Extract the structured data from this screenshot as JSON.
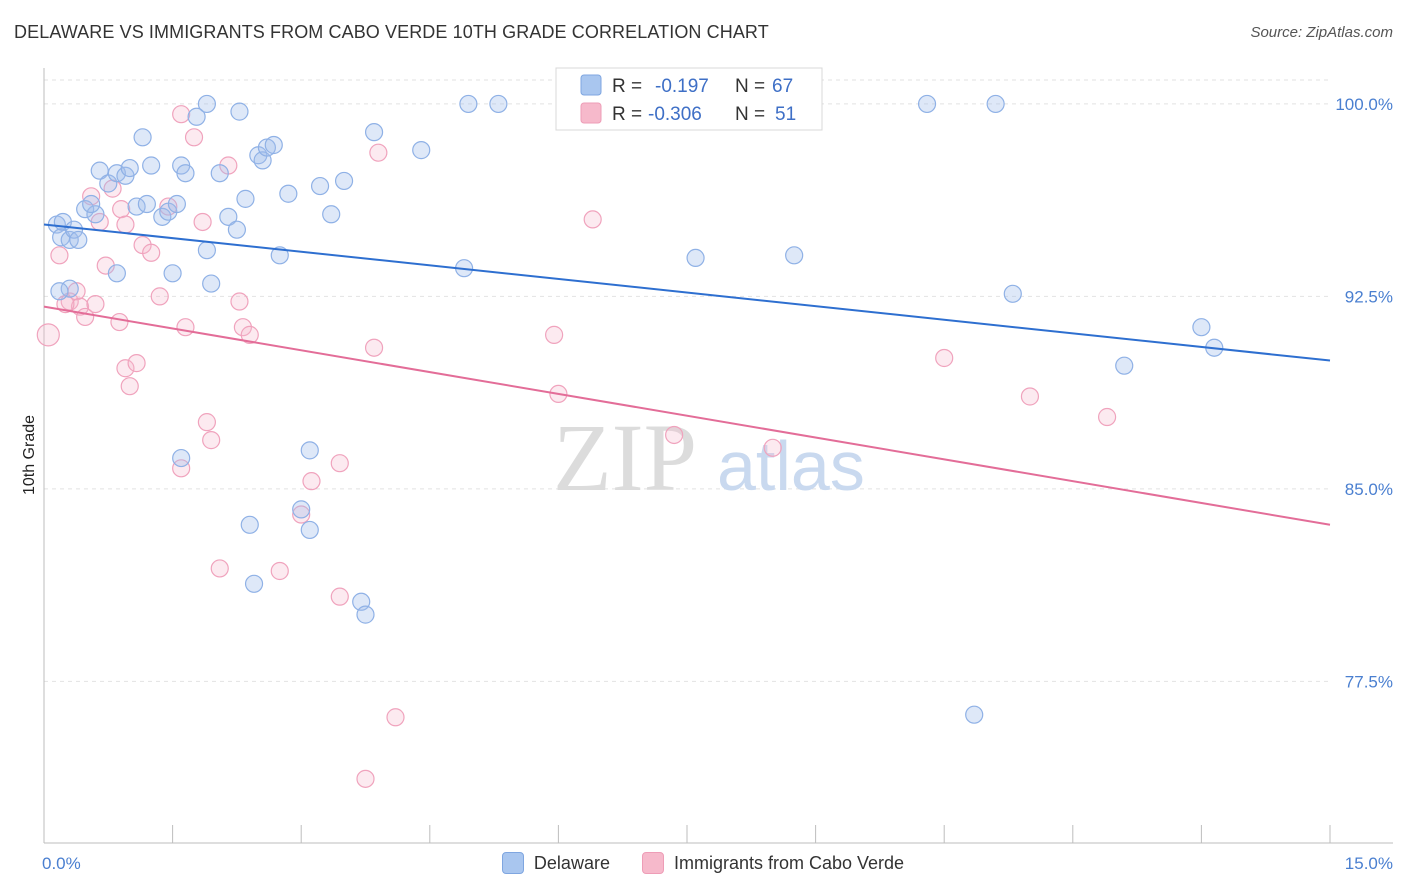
{
  "header": {
    "title": "DELAWARE VS IMMIGRANTS FROM CABO VERDE 10TH GRADE CORRELATION CHART",
    "source": "Source: ZipAtlas.com"
  },
  "watermark": {
    "zip": "ZIP",
    "atlas": "atlas"
  },
  "legend_top": [
    {
      "r_label": "R =",
      "r_value": "-0.197",
      "n_label": "N =",
      "n_value": "67",
      "color": "#a9c6ef"
    },
    {
      "r_label": "R =",
      "r_value": "-0.306",
      "n_label": "N =",
      "n_value": "51",
      "color": "#f6b9cb"
    }
  ],
  "legend_bottom": [
    {
      "label": "Delaware",
      "color": "#a9c6ef"
    },
    {
      "label": "Immigrants from Cabo Verde",
      "color": "#f6b9cb"
    }
  ],
  "colors": {
    "blue_fill": "rgba(160,190,235,0.35)",
    "blue_stroke": "#8fb1e6",
    "blue_line": "#2e6fd0",
    "pink_fill": "rgba(246,185,205,0.30)",
    "pink_stroke": "#f0a3bd",
    "pink_line": "#e36d98",
    "tick_text": "#4a7fd0",
    "grid": "#e2e2e2"
  },
  "chart_data": {
    "type": "scatter",
    "title": "DELAWARE VS IMMIGRANTS FROM CABO VERDE 10TH GRADE CORRELATION CHART",
    "xlabel": "",
    "ylabel": "10th Grade",
    "xlim": [
      0,
      15
    ],
    "ylim": [
      71.2,
      101.4
    ],
    "x_tick_labels": [
      {
        "value": 0,
        "label": "0.0%"
      },
      {
        "value": 15,
        "label": "15.0%"
      }
    ],
    "x_minor_ticks": [
      1.5,
      3.0,
      4.5,
      6.0,
      7.5,
      9.0,
      10.5,
      12.0,
      13.5
    ],
    "y_ticks": [
      {
        "value": 100.0,
        "label": "100.0%"
      },
      {
        "value": 92.5,
        "label": "92.5%"
      },
      {
        "value": 85.0,
        "label": "85.0%"
      },
      {
        "value": 77.5,
        "label": "77.5%"
      }
    ],
    "grid": true,
    "legend_position": "top-center",
    "series": [
      {
        "name": "Delaware",
        "trend": {
          "x": [
            0,
            15
          ],
          "y": [
            95.3,
            90.0
          ]
        },
        "points": [
          [
            0.15,
            95.3
          ],
          [
            0.22,
            95.4
          ],
          [
            0.2,
            94.8
          ],
          [
            0.3,
            94.7
          ],
          [
            0.35,
            95.1
          ],
          [
            0.4,
            94.7
          ],
          [
            0.48,
            95.9
          ],
          [
            0.6,
            95.7
          ],
          [
            0.55,
            96.1
          ],
          [
            0.65,
            97.4
          ],
          [
            0.75,
            96.9
          ],
          [
            0.85,
            97.3
          ],
          [
            0.95,
            97.2
          ],
          [
            1.0,
            97.5
          ],
          [
            1.08,
            96.0
          ],
          [
            1.15,
            98.7
          ],
          [
            1.2,
            96.1
          ],
          [
            1.25,
            97.6
          ],
          [
            1.38,
            95.6
          ],
          [
            1.45,
            95.8
          ],
          [
            1.55,
            96.1
          ],
          [
            1.6,
            97.6
          ],
          [
            1.65,
            97.3
          ],
          [
            1.78,
            99.5
          ],
          [
            1.9,
            100.0
          ],
          [
            2.05,
            97.3
          ],
          [
            2.15,
            95.6
          ],
          [
            2.25,
            95.1
          ],
          [
            2.28,
            99.7
          ],
          [
            2.35,
            96.3
          ],
          [
            2.5,
            98.0
          ],
          [
            2.55,
            97.8
          ],
          [
            2.6,
            98.3
          ],
          [
            2.68,
            98.4
          ],
          [
            2.75,
            94.1
          ],
          [
            2.85,
            96.5
          ],
          [
            3.22,
            96.8
          ],
          [
            3.35,
            95.7
          ],
          [
            3.5,
            97.0
          ],
          [
            3.85,
            98.9
          ],
          [
            4.4,
            98.2
          ],
          [
            4.9,
            93.6
          ],
          [
            4.95,
            100.0
          ],
          [
            5.3,
            100.0
          ],
          [
            7.6,
            94.0
          ],
          [
            8.75,
            94.1
          ],
          [
            10.3,
            100.0
          ],
          [
            11.1,
            100.0
          ],
          [
            11.3,
            92.6
          ],
          [
            12.6,
            89.8
          ],
          [
            13.5,
            91.3
          ],
          [
            13.65,
            90.5
          ],
          [
            0.3,
            92.8
          ],
          [
            0.85,
            93.4
          ],
          [
            1.5,
            93.4
          ],
          [
            1.9,
            94.3
          ],
          [
            1.95,
            93.0
          ],
          [
            2.45,
            81.3
          ],
          [
            3.0,
            84.2
          ],
          [
            3.1,
            83.4
          ],
          [
            2.4,
            83.6
          ],
          [
            3.1,
            86.5
          ],
          [
            1.6,
            86.2
          ],
          [
            3.7,
            80.6
          ],
          [
            3.75,
            80.1
          ],
          [
            10.85,
            76.2
          ],
          [
            0.18,
            92.7
          ]
        ]
      },
      {
        "name": "Immigrants from Cabo Verde",
        "trend": {
          "x": [
            0,
            15
          ],
          "y": [
            92.1,
            83.6
          ]
        },
        "points": [
          [
            0.05,
            91.0
          ],
          [
            0.18,
            94.1
          ],
          [
            0.3,
            92.3
          ],
          [
            0.38,
            92.7
          ],
          [
            0.42,
            92.1
          ],
          [
            0.48,
            91.7
          ],
          [
            0.55,
            96.4
          ],
          [
            0.65,
            95.4
          ],
          [
            0.72,
            93.7
          ],
          [
            0.8,
            96.7
          ],
          [
            0.88,
            91.5
          ],
          [
            0.9,
            95.9
          ],
          [
            0.95,
            89.7
          ],
          [
            1.0,
            89.0
          ],
          [
            1.08,
            89.9
          ],
          [
            1.15,
            94.5
          ],
          [
            1.25,
            94.2
          ],
          [
            1.35,
            92.5
          ],
          [
            1.45,
            96.0
          ],
          [
            1.6,
            85.8
          ],
          [
            1.65,
            91.3
          ],
          [
            1.85,
            95.4
          ],
          [
            1.9,
            87.6
          ],
          [
            1.95,
            86.9
          ],
          [
            2.05,
            81.9
          ],
          [
            2.15,
            97.6
          ],
          [
            2.28,
            92.3
          ],
          [
            2.32,
            91.3
          ],
          [
            2.4,
            91.0
          ],
          [
            2.75,
            81.8
          ],
          [
            3.0,
            84.0
          ],
          [
            3.12,
            85.3
          ],
          [
            3.45,
            86.0
          ],
          [
            3.45,
            80.8
          ],
          [
            3.85,
            90.5
          ],
          [
            3.9,
            98.1
          ],
          [
            4.1,
            76.1
          ],
          [
            3.75,
            73.7
          ],
          [
            5.95,
            91.0
          ],
          [
            6.0,
            88.7
          ],
          [
            6.4,
            95.5
          ],
          [
            7.35,
            87.1
          ],
          [
            8.5,
            86.6
          ],
          [
            10.5,
            90.1
          ],
          [
            11.5,
            88.6
          ],
          [
            12.4,
            87.8
          ],
          [
            1.75,
            98.7
          ],
          [
            1.6,
            99.6
          ],
          [
            0.25,
            92.2
          ],
          [
            0.6,
            92.2
          ],
          [
            0.95,
            95.3
          ]
        ]
      }
    ]
  }
}
